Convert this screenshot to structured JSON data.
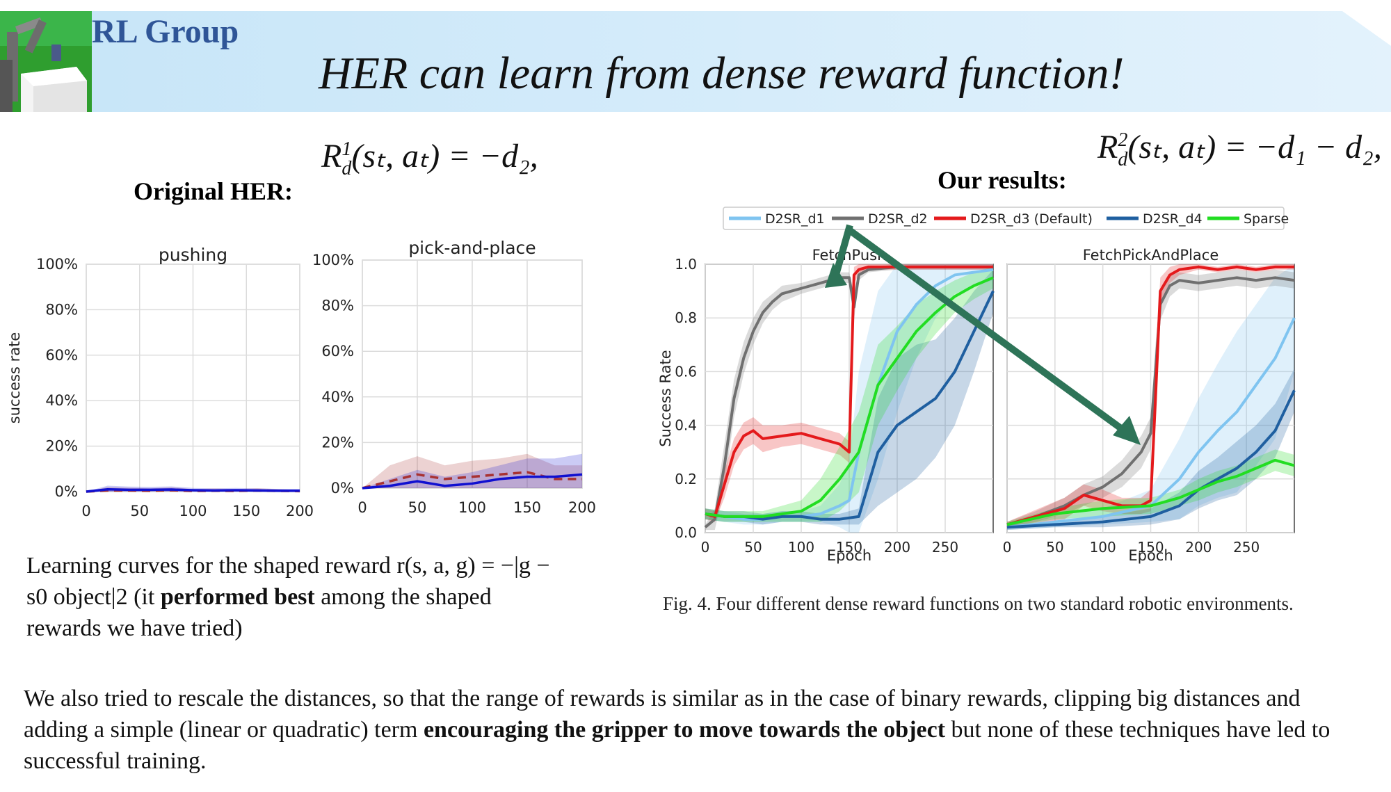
{
  "header": {
    "group_name": "RL Group",
    "title": "HER can learn from dense reward function!",
    "colors": {
      "banner_start": "#c6e5f8",
      "banner_end": "#e3f2fc",
      "group_text": "#2f5597"
    }
  },
  "left": {
    "heading": "Original HER:",
    "formula": {
      "R": "R",
      "sup": "1",
      "sub": "d",
      "rest": "(sₜ, aₜ) = −d₂,"
    },
    "caption_parts": {
      "a": "Learning curves for the shaped reward r(s, a, g) = −|g − s0 object|2 (it ",
      "bold": "performed best",
      "b": " among the shaped rewards we have tried)"
    }
  },
  "right": {
    "heading": "Our results:",
    "formula": {
      "R": "R",
      "sup": "2",
      "sub": "d",
      "rest": "(sₜ, aₜ) = −d₁ − d₂,"
    },
    "fig_caption": "Fig. 4.    Four different dense reward functions on two standard robotic environments."
  },
  "bottom_text_parts": {
    "a": "We also tried to rescale the distances, so that the range of rewards is similar as in the case of binary rewards, clipping big distances and adding a simple (linear or quadratic) term ",
    "bold": "encouraging the gripper to move towards the object",
    "b": " but none of these techniques have led to successful training."
  },
  "chart_data": [
    {
      "type": "line",
      "title": "pushing",
      "xlabel": "",
      "ylabel": "success rate",
      "xlim": [
        0,
        200
      ],
      "ylim": [
        0,
        100
      ],
      "xticks": [
        "0",
        "50",
        "100",
        "150",
        "200"
      ],
      "yticks": [
        "0%",
        "20%",
        "40%",
        "60%",
        "80%",
        "100%"
      ],
      "grid": true,
      "series": [
        {
          "style": "dashed",
          "color": "#a83232",
          "x": [
            0,
            20,
            40,
            60,
            80,
            100,
            120,
            140,
            160,
            180,
            200
          ],
          "y": [
            0,
            0.5,
            0.5,
            0.4,
            0.6,
            0.3,
            0.4,
            0.3,
            0.5,
            0.3,
            0.2
          ],
          "band": [
            0,
            1.5,
            1.2,
            1.0,
            1.3,
            0.8,
            1.0,
            0.8,
            1.0,
            0.8,
            0.5
          ]
        },
        {
          "style": "solid",
          "color": "#1010d0",
          "x": [
            0,
            20,
            40,
            60,
            80,
            100,
            120,
            140,
            160,
            180,
            200
          ],
          "y": [
            0,
            1.0,
            0.8,
            0.8,
            0.9,
            0.6,
            0.5,
            0.6,
            0.5,
            0.4,
            0.4
          ],
          "band": [
            0,
            1.6,
            1.4,
            1.3,
            1.4,
            1.0,
            0.9,
            1.0,
            0.9,
            0.8,
            0.8
          ]
        }
      ]
    },
    {
      "type": "line",
      "title": "pick-and-place",
      "xlabel": "",
      "ylabel": "",
      "xlim": [
        0,
        200
      ],
      "ylim": [
        0,
        100
      ],
      "xticks": [
        "0",
        "50",
        "100",
        "150",
        "200"
      ],
      "yticks": [
        "0%",
        "20%",
        "40%",
        "60%",
        "80%",
        "100%"
      ],
      "grid": true,
      "series": [
        {
          "style": "dashed",
          "color": "#a83232",
          "x": [
            0,
            25,
            50,
            75,
            100,
            125,
            150,
            175,
            200
          ],
          "y": [
            0,
            3,
            6,
            4,
            5,
            6,
            7,
            4,
            4
          ],
          "band": [
            0,
            7,
            8,
            6,
            7,
            7,
            8,
            6,
            6
          ]
        },
        {
          "style": "solid",
          "color": "#1010d0",
          "x": [
            0,
            25,
            50,
            75,
            100,
            125,
            150,
            175,
            200
          ],
          "y": [
            0,
            1,
            3,
            1,
            2,
            4,
            5,
            5,
            6
          ],
          "band": [
            0,
            3,
            5,
            4,
            5,
            6,
            8,
            8,
            9
          ]
        }
      ]
    },
    {
      "type": "line",
      "title": "FetchPush",
      "xlabel": "Epoch",
      "ylabel": "Success Rate",
      "xlim": [
        0,
        300
      ],
      "ylim": [
        0,
        1.0
      ],
      "xticks": [
        "0",
        "50",
        "100",
        "150",
        "200",
        "250"
      ],
      "yticks": [
        "0.0",
        "0.2",
        "0.4",
        "0.6",
        "0.8",
        "1.0"
      ],
      "grid": true,
      "legend": {
        "position": "top",
        "entries": [
          "D2SR_d1",
          "D2SR_d2",
          "D2SR_d3 (Default)",
          "D2SR_d4",
          "Sparse"
        ]
      },
      "series": [
        {
          "name": "D2SR_d1",
          "color": "#7fc4f0",
          "x": [
            0,
            20,
            40,
            60,
            80,
            100,
            120,
            140,
            150,
            160,
            180,
            200,
            220,
            240,
            260,
            280,
            300
          ],
          "y": [
            0.07,
            0.06,
            0.05,
            0.05,
            0.06,
            0.06,
            0.07,
            0.1,
            0.12,
            0.3,
            0.55,
            0.75,
            0.85,
            0.92,
            0.96,
            0.97,
            0.98
          ],
          "band": [
            0.02,
            0.02,
            0.02,
            0.02,
            0.02,
            0.02,
            0.03,
            0.08,
            0.15,
            0.3,
            0.35,
            0.3,
            0.2,
            0.12,
            0.07,
            0.05,
            0.04
          ]
        },
        {
          "name": "D2SR_d2",
          "color": "#707070",
          "x": [
            0,
            10,
            20,
            30,
            40,
            50,
            60,
            70,
            80,
            100,
            120,
            140,
            150,
            155,
            160,
            170,
            200,
            250,
            300
          ],
          "y": [
            0.02,
            0.05,
            0.25,
            0.5,
            0.65,
            0.75,
            0.82,
            0.86,
            0.89,
            0.91,
            0.93,
            0.95,
            0.95,
            0.84,
            0.96,
            0.98,
            0.99,
            0.99,
            0.99
          ],
          "band": [
            0.01,
            0.04,
            0.08,
            0.07,
            0.06,
            0.05,
            0.04,
            0.03,
            0.03,
            0.02,
            0.02,
            0.02,
            0.02,
            0.05,
            0.02,
            0.01,
            0.01,
            0.01,
            0.01
          ]
        },
        {
          "name": "D2SR_d3 (Default)",
          "color": "#e41a1c",
          "x": [
            0,
            10,
            20,
            30,
            40,
            50,
            60,
            80,
            100,
            120,
            140,
            150,
            155,
            160,
            170,
            200,
            250,
            300
          ],
          "y": [
            0.07,
            0.06,
            0.18,
            0.3,
            0.36,
            0.38,
            0.35,
            0.36,
            0.37,
            0.35,
            0.33,
            0.3,
            0.96,
            0.98,
            0.99,
            0.99,
            0.99,
            0.99
          ],
          "band": [
            0.02,
            0.02,
            0.05,
            0.05,
            0.05,
            0.05,
            0.05,
            0.04,
            0.04,
            0.04,
            0.04,
            0.04,
            0.03,
            0.02,
            0.01,
            0.01,
            0.01,
            0.01
          ]
        },
        {
          "name": "D2SR_d4",
          "color": "#1f5fa0",
          "x": [
            0,
            20,
            40,
            60,
            80,
            100,
            120,
            140,
            160,
            180,
            200,
            220,
            240,
            260,
            280,
            300
          ],
          "y": [
            0.07,
            0.06,
            0.06,
            0.05,
            0.06,
            0.06,
            0.05,
            0.05,
            0.06,
            0.3,
            0.4,
            0.45,
            0.5,
            0.6,
            0.75,
            0.9
          ],
          "band": [
            0.02,
            0.02,
            0.02,
            0.02,
            0.02,
            0.02,
            0.02,
            0.02,
            0.03,
            0.2,
            0.25,
            0.25,
            0.22,
            0.2,
            0.15,
            0.08
          ]
        },
        {
          "name": "Sparse",
          "color": "#22dd22",
          "x": [
            0,
            20,
            40,
            60,
            80,
            100,
            120,
            140,
            160,
            180,
            200,
            220,
            240,
            260,
            280,
            300
          ],
          "y": [
            0.07,
            0.06,
            0.06,
            0.06,
            0.07,
            0.08,
            0.12,
            0.2,
            0.3,
            0.55,
            0.65,
            0.75,
            0.82,
            0.88,
            0.92,
            0.95
          ],
          "band": [
            0.02,
            0.02,
            0.02,
            0.02,
            0.03,
            0.04,
            0.08,
            0.12,
            0.15,
            0.15,
            0.12,
            0.1,
            0.08,
            0.06,
            0.05,
            0.04
          ]
        }
      ]
    },
    {
      "type": "line",
      "title": "FetchPickAndPlace",
      "xlabel": "Epoch",
      "ylabel": "",
      "xlim": [
        0,
        300
      ],
      "ylim": [
        0,
        1.0
      ],
      "xticks": [
        "0",
        "50",
        "100",
        "150",
        "200",
        "250"
      ],
      "yticks": [],
      "grid": true,
      "series": [
        {
          "name": "D2SR_d1",
          "color": "#7fc4f0",
          "x": [
            0,
            50,
            100,
            150,
            180,
            200,
            220,
            240,
            260,
            280,
            300
          ],
          "y": [
            0.02,
            0.04,
            0.06,
            0.1,
            0.2,
            0.3,
            0.38,
            0.45,
            0.55,
            0.65,
            0.8
          ],
          "band": [
            0.01,
            0.02,
            0.03,
            0.06,
            0.15,
            0.2,
            0.25,
            0.3,
            0.3,
            0.3,
            0.2
          ]
        },
        {
          "name": "D2SR_d2",
          "color": "#707070",
          "x": [
            0,
            30,
            60,
            80,
            100,
            120,
            140,
            150,
            155,
            160,
            170,
            180,
            200,
            220,
            240,
            260,
            280,
            300
          ],
          "y": [
            0.03,
            0.06,
            0.1,
            0.14,
            0.17,
            0.22,
            0.3,
            0.37,
            0.6,
            0.85,
            0.92,
            0.94,
            0.93,
            0.94,
            0.95,
            0.94,
            0.95,
            0.94
          ],
          "band": [
            0.01,
            0.02,
            0.03,
            0.04,
            0.04,
            0.05,
            0.06,
            0.06,
            0.1,
            0.06,
            0.04,
            0.03,
            0.03,
            0.03,
            0.03,
            0.03,
            0.03,
            0.03
          ]
        },
        {
          "name": "D2SR_d3 (Default)",
          "color": "#e41a1c",
          "x": [
            0,
            20,
            40,
            60,
            80,
            100,
            120,
            140,
            150,
            155,
            160,
            170,
            180,
            200,
            220,
            240,
            260,
            280,
            300
          ],
          "y": [
            0.03,
            0.05,
            0.07,
            0.09,
            0.14,
            0.12,
            0.1,
            0.1,
            0.12,
            0.5,
            0.9,
            0.96,
            0.98,
            0.99,
            0.98,
            0.99,
            0.98,
            0.99,
            0.99
          ],
          "band": [
            0.01,
            0.02,
            0.03,
            0.04,
            0.04,
            0.04,
            0.03,
            0.03,
            0.04,
            0.1,
            0.05,
            0.03,
            0.02,
            0.01,
            0.01,
            0.01,
            0.01,
            0.01,
            0.01
          ]
        },
        {
          "name": "D2SR_d4",
          "color": "#1f5fa0",
          "x": [
            0,
            50,
            100,
            150,
            180,
            200,
            220,
            240,
            260,
            280,
            300
          ],
          "y": [
            0.02,
            0.03,
            0.04,
            0.06,
            0.1,
            0.16,
            0.2,
            0.24,
            0.3,
            0.38,
            0.53
          ],
          "band": [
            0.01,
            0.01,
            0.02,
            0.03,
            0.05,
            0.07,
            0.08,
            0.1,
            0.1,
            0.1,
            0.08
          ]
        },
        {
          "name": "Sparse",
          "color": "#22dd22",
          "x": [
            0,
            50,
            100,
            150,
            180,
            200,
            220,
            240,
            260,
            280,
            300
          ],
          "y": [
            0.03,
            0.07,
            0.09,
            0.1,
            0.13,
            0.16,
            0.19,
            0.21,
            0.24,
            0.27,
            0.25
          ],
          "band": [
            0.01,
            0.02,
            0.03,
            0.03,
            0.03,
            0.04,
            0.04,
            0.04,
            0.04,
            0.04,
            0.04
          ]
        }
      ]
    }
  ]
}
